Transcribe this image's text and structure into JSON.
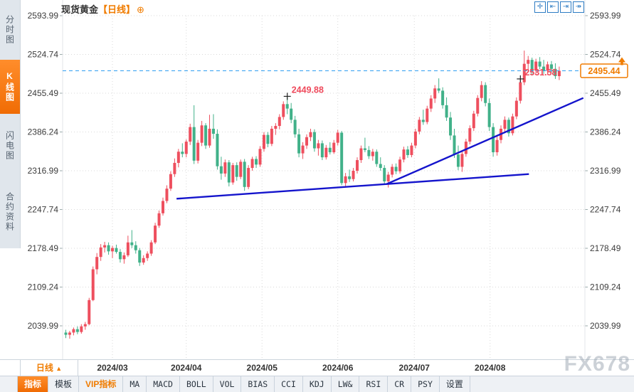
{
  "header": {
    "symbol": "现货黄金",
    "period_tag": "【日线】",
    "add_icon": "⊕"
  },
  "top_icons": [
    {
      "name": "crosshair-icon",
      "glyph": "✛"
    },
    {
      "name": "fit-width-icon",
      "glyph": "⇤"
    },
    {
      "name": "fit-right-icon",
      "glyph": "⇥"
    },
    {
      "name": "pan-right-icon",
      "glyph": "↠"
    }
  ],
  "sidebar": {
    "tabs": [
      {
        "label": "分时图",
        "active": false
      },
      {
        "label": "K线图",
        "active": true
      },
      {
        "label": "闪电图",
        "active": false
      },
      {
        "label": "合约资料",
        "active": false
      }
    ]
  },
  "bottom": {
    "period_label": "日线",
    "period_arrow": "▲"
  },
  "toolbar": {
    "items": [
      {
        "label": "指标",
        "state": "active"
      },
      {
        "label": "模板",
        "state": "normal"
      },
      {
        "label": "VIP指标",
        "state": "vip"
      },
      {
        "label": "MA",
        "state": "normal"
      },
      {
        "label": "MACD",
        "state": "normal"
      },
      {
        "label": "BOLL",
        "state": "normal"
      },
      {
        "label": "VOL",
        "state": "normal"
      },
      {
        "label": "BIAS",
        "state": "normal"
      },
      {
        "label": "CCI",
        "state": "normal"
      },
      {
        "label": "KDJ",
        "state": "normal"
      },
      {
        "label": "LW&",
        "state": "normal"
      },
      {
        "label": "RSI",
        "state": "normal"
      },
      {
        "label": "CR",
        "state": "normal"
      },
      {
        "label": "PSY",
        "state": "normal"
      },
      {
        "label": "设置",
        "state": "normal"
      }
    ]
  },
  "watermark": {
    "text": "FX678"
  },
  "colors": {
    "up": "#ee4f5e",
    "down": "#41b189",
    "trendline": "#1414cc",
    "price_line": "#2f9ff2",
    "accent": "#f07c00",
    "annotation": "#ef4a5c",
    "grid": "#d9d9d9",
    "axis_text": "#3c3c3c",
    "cross": "#222222"
  },
  "chart_data": {
    "type": "candlestick",
    "title": "现货黄金 日线",
    "y_ticks": [
      2593.99,
      2524.74,
      2455.49,
      2386.24,
      2316.99,
      2247.74,
      2178.49,
      2109.24,
      2039.99
    ],
    "x_labels": [
      "2024/03",
      "2024/04",
      "2024/05",
      "2024/06",
      "2024/07",
      "2024/08"
    ],
    "x_label_indices": [
      12,
      31,
      50.5,
      70,
      89.7,
      109.2
    ],
    "current_price": 2495.44,
    "annotations": [
      {
        "text": "2449.88",
        "candle_index": 57
      },
      {
        "text": "2531.58",
        "candle_index": 117
      }
    ],
    "trendlines": [
      {
        "from_index": 28.5,
        "from_price": 2267,
        "to_index": 119.2,
        "to_price": 2311
      },
      {
        "from_index": 82.5,
        "from_price": 2293,
        "to_index": 133.2,
        "to_price": 2447
      }
    ],
    "candles": [
      [
        2028,
        2033,
        2018,
        2024
      ],
      [
        2024,
        2031,
        2017,
        2028
      ],
      [
        2028,
        2037,
        2023,
        2034
      ],
      [
        2034,
        2039,
        2025,
        2029
      ],
      [
        2029,
        2043,
        2026,
        2039
      ],
      [
        2039,
        2047,
        2033,
        2043
      ],
      [
        2043,
        2090,
        2041,
        2086
      ],
      [
        2086,
        2146,
        2084,
        2141
      ],
      [
        2141,
        2170,
        2132,
        2163
      ],
      [
        2163,
        2186,
        2156,
        2180
      ],
      [
        2180,
        2190,
        2171,
        2184
      ],
      [
        2184,
        2189,
        2167,
        2173
      ],
      [
        2173,
        2183,
        2161,
        2179
      ],
      [
        2179,
        2185,
        2169,
        2172
      ],
      [
        2172,
        2177,
        2153,
        2159
      ],
      [
        2159,
        2171,
        2151,
        2166
      ],
      [
        2166,
        2201,
        2163,
        2189
      ],
      [
        2189,
        2211,
        2179,
        2184
      ],
      [
        2184,
        2191,
        2169,
        2175
      ],
      [
        2175,
        2179,
        2147,
        2153
      ],
      [
        2153,
        2166,
        2149,
        2161
      ],
      [
        2161,
        2173,
        2156,
        2169
      ],
      [
        2169,
        2193,
        2165,
        2189
      ],
      [
        2189,
        2224,
        2186,
        2219
      ],
      [
        2219,
        2246,
        2215,
        2241
      ],
      [
        2241,
        2269,
        2237,
        2263
      ],
      [
        2263,
        2291,
        2259,
        2285
      ],
      [
        2285,
        2316,
        2281,
        2311
      ],
      [
        2311,
        2339,
        2306,
        2331
      ],
      [
        2331,
        2356,
        2323,
        2351
      ],
      [
        2351,
        2366,
        2341,
        2347
      ],
      [
        2347,
        2373,
        2341,
        2369
      ],
      [
        2369,
        2401,
        2363,
        2395
      ],
      [
        2395,
        2434,
        2329,
        2335
      ],
      [
        2335,
        2372,
        2330,
        2367
      ],
      [
        2367,
        2406,
        2361,
        2398
      ],
      [
        2398,
        2402,
        2356,
        2362
      ],
      [
        2362,
        2417,
        2358,
        2392
      ],
      [
        2392,
        2418,
        2374,
        2383
      ],
      [
        2383,
        2391,
        2319,
        2325
      ],
      [
        2325,
        2342,
        2301,
        2312
      ],
      [
        2312,
        2337,
        2306,
        2332
      ],
      [
        2332,
        2336,
        2289,
        2296
      ],
      [
        2296,
        2331,
        2292,
        2327
      ],
      [
        2327,
        2332,
        2299,
        2306
      ],
      [
        2306,
        2337,
        2302,
        2333
      ],
      [
        2333,
        2338,
        2281,
        2288
      ],
      [
        2288,
        2327,
        2284,
        2322
      ],
      [
        2322,
        2342,
        2317,
        2338
      ],
      [
        2338,
        2343,
        2322,
        2328
      ],
      [
        2328,
        2361,
        2324,
        2356
      ],
      [
        2356,
        2386,
        2351,
        2381
      ],
      [
        2381,
        2386,
        2359,
        2365
      ],
      [
        2365,
        2397,
        2361,
        2392
      ],
      [
        2392,
        2402,
        2381,
        2397
      ],
      [
        2397,
        2418,
        2391,
        2413
      ],
      [
        2413,
        2441,
        2408,
        2436
      ],
      [
        2436,
        2449.88,
        2418,
        2428
      ],
      [
        2428,
        2438,
        2402,
        2408
      ],
      [
        2408,
        2415,
        2376,
        2382
      ],
      [
        2382,
        2392,
        2341,
        2348
      ],
      [
        2348,
        2368,
        2338,
        2362
      ],
      [
        2362,
        2382,
        2356,
        2377
      ],
      [
        2377,
        2392,
        2370,
        2386
      ],
      [
        2386,
        2391,
        2351,
        2357
      ],
      [
        2357,
        2372,
        2344,
        2366
      ],
      [
        2366,
        2371,
        2336,
        2341
      ],
      [
        2341,
        2363,
        2337,
        2358
      ],
      [
        2358,
        2368,
        2346,
        2350
      ],
      [
        2350,
        2372,
        2347,
        2367
      ],
      [
        2367,
        2390,
        2362,
        2385
      ],
      [
        2385,
        2388,
        2291,
        2295
      ],
      [
        2295,
        2313,
        2287,
        2307
      ],
      [
        2307,
        2319,
        2297,
        2302
      ],
      [
        2302,
        2322,
        2298,
        2317
      ],
      [
        2317,
        2341,
        2312,
        2336
      ],
      [
        2336,
        2362,
        2331,
        2357
      ],
      [
        2357,
        2376,
        2350,
        2354
      ],
      [
        2354,
        2361,
        2338,
        2343
      ],
      [
        2343,
        2356,
        2335,
        2351
      ],
      [
        2351,
        2355,
        2324,
        2329
      ],
      [
        2329,
        2341,
        2317,
        2322
      ],
      [
        2322,
        2327,
        2293,
        2298
      ],
      [
        2298,
        2315,
        2287,
        2310
      ],
      [
        2310,
        2329,
        2305,
        2324
      ],
      [
        2324,
        2330,
        2311,
        2316
      ],
      [
        2316,
        2342,
        2312,
        2337
      ],
      [
        2337,
        2360,
        2332,
        2355
      ],
      [
        2355,
        2361,
        2340,
        2345
      ],
      [
        2345,
        2367,
        2341,
        2362
      ],
      [
        2362,
        2392,
        2357,
        2387
      ],
      [
        2387,
        2413,
        2382,
        2408
      ],
      [
        2408,
        2426,
        2399,
        2404
      ],
      [
        2404,
        2433,
        2400,
        2428
      ],
      [
        2428,
        2452,
        2422,
        2446
      ],
      [
        2446,
        2470,
        2438,
        2464
      ],
      [
        2464,
        2482,
        2456,
        2460
      ],
      [
        2460,
        2466,
        2428,
        2434
      ],
      [
        2434,
        2448,
        2406,
        2412
      ],
      [
        2412,
        2422,
        2372,
        2380
      ],
      [
        2380,
        2392,
        2340,
        2346
      ],
      [
        2346,
        2362,
        2318,
        2324
      ],
      [
        2324,
        2352,
        2315,
        2347
      ],
      [
        2347,
        2374,
        2342,
        2369
      ],
      [
        2369,
        2398,
        2364,
        2393
      ],
      [
        2393,
        2424,
        2388,
        2419
      ],
      [
        2419,
        2452,
        2414,
        2447
      ],
      [
        2447,
        2477,
        2441,
        2470
      ],
      [
        2470,
        2475,
        2432,
        2438
      ],
      [
        2438,
        2446,
        2388,
        2395
      ],
      [
        2395,
        2402,
        2342,
        2350
      ],
      [
        2350,
        2378,
        2344,
        2372
      ],
      [
        2372,
        2398,
        2366,
        2392
      ],
      [
        2392,
        2414,
        2386,
        2408
      ],
      [
        2408,
        2412,
        2378,
        2384
      ],
      [
        2384,
        2419,
        2380,
        2414
      ],
      [
        2414,
        2448,
        2409,
        2442
      ],
      [
        2442,
        2481,
        2437,
        2475
      ],
      [
        2475,
        2531.58,
        2470,
        2508
      ],
      [
        2508,
        2522,
        2494,
        2515
      ],
      [
        2515,
        2519,
        2489,
        2496
      ],
      [
        2496,
        2517,
        2491,
        2512
      ],
      [
        2512,
        2520,
        2498,
        2503
      ],
      [
        2503,
        2515,
        2490,
        2496
      ],
      [
        2496,
        2512,
        2488,
        2507
      ],
      [
        2507,
        2513,
        2493,
        2499
      ],
      [
        2499,
        2509,
        2481,
        2486
      ],
      [
        2486,
        2503,
        2479,
        2495.44
      ]
    ]
  }
}
